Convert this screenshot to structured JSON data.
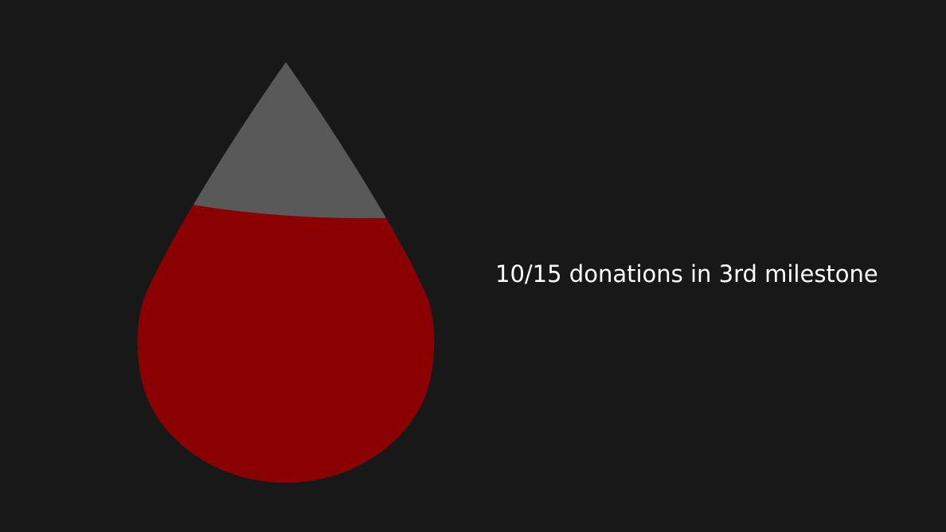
{
  "milestone": {
    "label": "10/15 donations in 3rd milestone",
    "fill_fraction": 0.6667
  },
  "colors": {
    "background": "#181818",
    "drop_empty": "#595959",
    "drop_fill": "#8b0000",
    "text": "#ffffff"
  },
  "icons": {
    "progress_drop": "blood-drop-icon"
  }
}
